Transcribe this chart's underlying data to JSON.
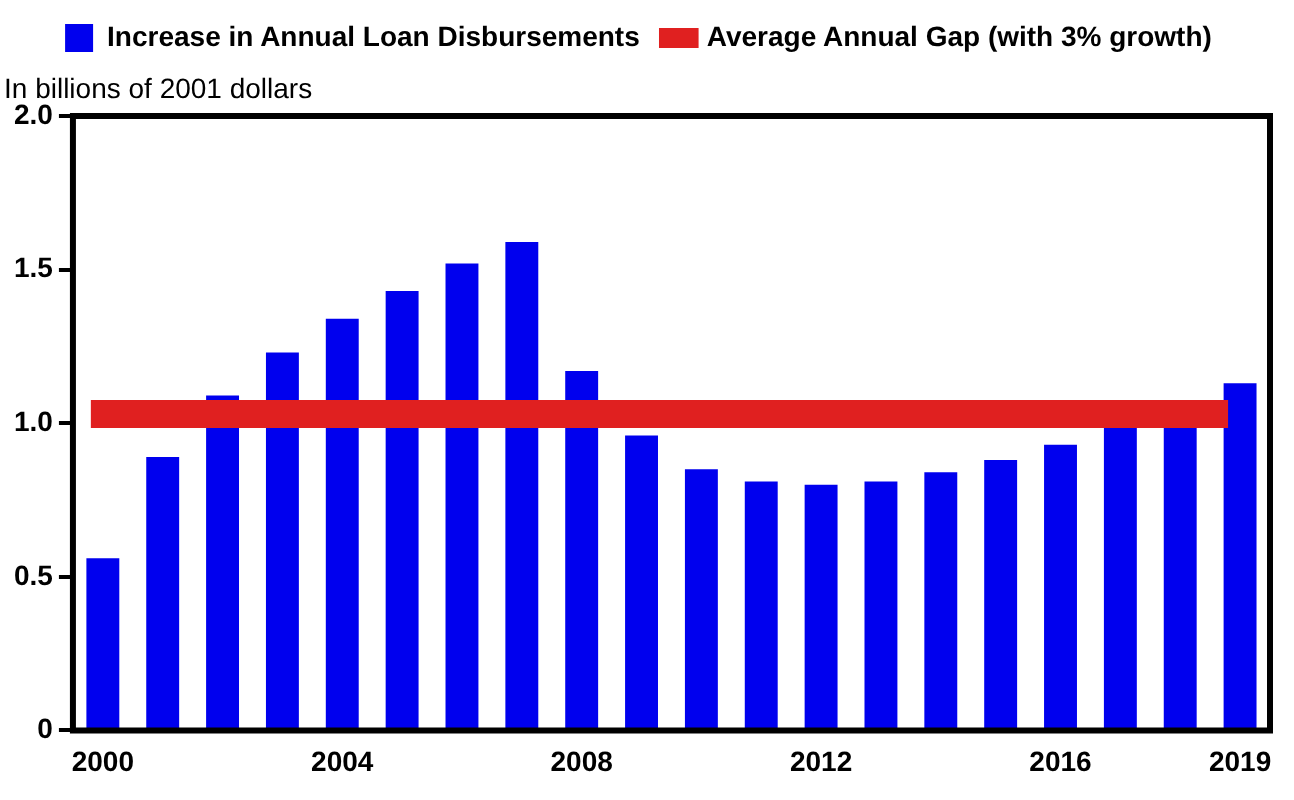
{
  "chart_data": {
    "type": "bar",
    "ylabel": "In billions of 2001 dollars",
    "categories": [
      "2000",
      null,
      null,
      null,
      "2004",
      null,
      null,
      null,
      "2008",
      null,
      null,
      null,
      "2012",
      null,
      null,
      null,
      "2016",
      null,
      null,
      "2019"
    ],
    "series": [
      {
        "name": "Increase in Annual Loan Disbursements",
        "color": "#0000ee",
        "values": [
          0.56,
          0.89,
          1.09,
          1.23,
          1.34,
          1.43,
          1.52,
          1.59,
          1.17,
          0.96,
          0.85,
          0.81,
          0.8,
          0.81,
          0.84,
          0.88,
          0.93,
          0.99,
          0.99,
          1.13
        ]
      }
    ],
    "ref_lines": [
      {
        "axis": "y",
        "value": 1.03,
        "label": "Average Annual Gap (with 3% growth)",
        "color": "#e02020"
      }
    ],
    "ylim": [
      0,
      2
    ],
    "yticks": [
      0,
      0.5,
      {
        "value": 1,
        "label": "1.0"
      },
      1.5,
      {
        "value": 2,
        "label": "2.0"
      }
    ],
    "grid": false,
    "legend": "top"
  }
}
